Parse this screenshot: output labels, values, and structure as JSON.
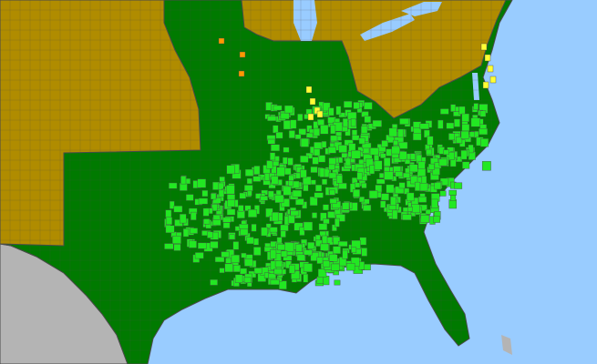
{
  "map": {
    "colors": {
      "ocean": "#99ccff",
      "foreign_land": "#b4b4b4",
      "absent_region": "#b08c00",
      "present_region": "#007a00",
      "county_present": "#22e822",
      "county_yellow": "#ffff33",
      "county_orange": "#ff9900",
      "border": "#4a4a4a"
    }
  }
}
